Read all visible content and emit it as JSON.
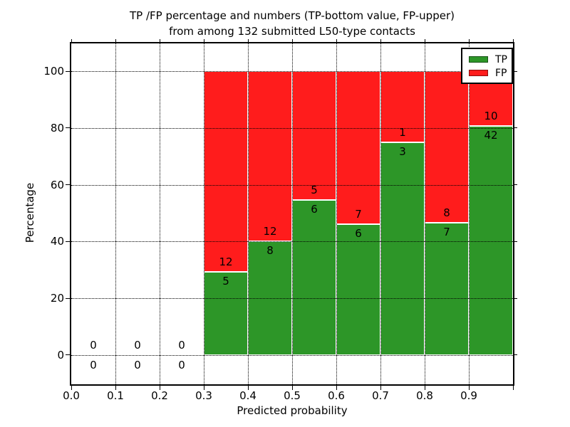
{
  "title": {
    "line1": "TP /FP percentage and numbers (TP-bottom value, FP-upper)",
    "line2": "from among 132 submitted L50-type contacts"
  },
  "axes": {
    "xlabel": "Predicted probability",
    "ylabel": "Percentage"
  },
  "chart_data": {
    "type": "bar",
    "subtype": "stacked-percentage-histogram",
    "title": "TP /FP percentage and numbers (TP-bottom value, FP-upper) from among 132 submitted L50-type contacts",
    "xlabel": "Predicted probability",
    "ylabel": "Percentage",
    "total_contacts": 132,
    "xlim": [
      0.0,
      1.0
    ],
    "ylim": [
      -10.3,
      109.8
    ],
    "bin_width": 0.1,
    "bin_starts": [
      0.0,
      0.1,
      0.2,
      0.3,
      0.4,
      0.5,
      0.6,
      0.7,
      0.8,
      0.9
    ],
    "categories": [
      "0.0-0.1",
      "0.1-0.2",
      "0.2-0.3",
      "0.3-0.4",
      "0.4-0.5",
      "0.5-0.6",
      "0.6-0.7",
      "0.7-0.8",
      "0.8-0.9",
      "0.9-1.0"
    ],
    "series": [
      {
        "name": "TP",
        "color": "#2d9628",
        "counts": [
          0,
          0,
          0,
          5,
          8,
          6,
          6,
          3,
          7,
          42
        ]
      },
      {
        "name": "FP",
        "color": "#ff1c1c",
        "counts": [
          0,
          0,
          0,
          12,
          12,
          5,
          7,
          1,
          8,
          10
        ]
      }
    ],
    "tp_percent_heights": [
      null,
      null,
      null,
      29.41,
      40.0,
      54.55,
      46.15,
      75.0,
      46.67,
      80.77
    ],
    "xticks": [
      "0.0",
      "0.1",
      "0.2",
      "0.3",
      "0.4",
      "0.5",
      "0.6",
      "0.7",
      "0.8",
      "0.9"
    ],
    "yticks": [
      "0",
      "20",
      "40",
      "60",
      "80",
      "100"
    ],
    "grid": "dotted, both axes, drawn over bars",
    "legend": {
      "position": "upper right",
      "entries": [
        {
          "label": "TP",
          "color": "#2d9628"
        },
        {
          "label": "FP",
          "color": "#ff1c1c"
        }
      ]
    }
  }
}
